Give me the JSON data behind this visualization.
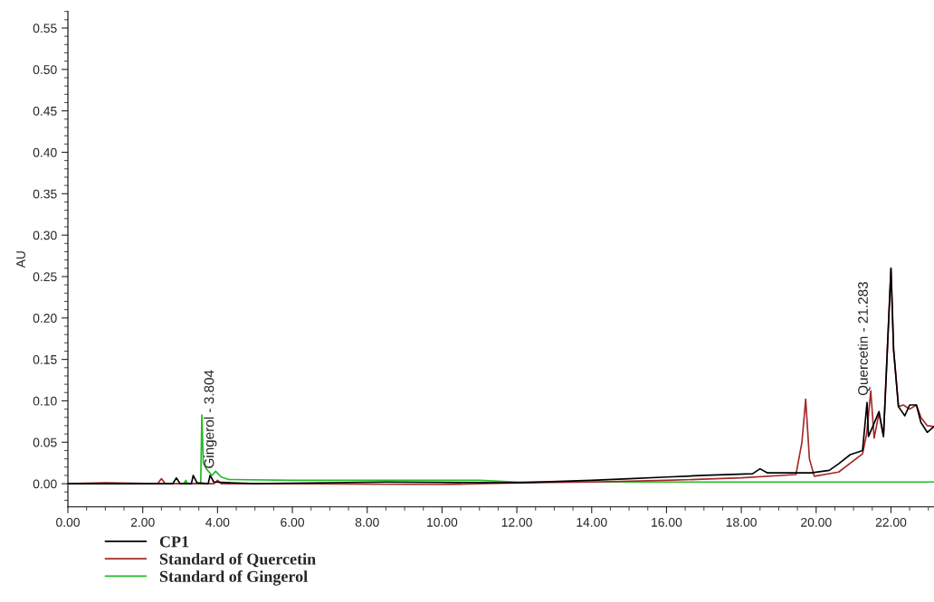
{
  "chart_data": {
    "type": "line",
    "ylabel": "AU",
    "xlim": [
      0,
      23.15
    ],
    "ylim": [
      -0.028,
      0.57
    ],
    "xticks": [
      {
        "value": 0,
        "label": "0.00"
      },
      {
        "value": 2,
        "label": "2.00"
      },
      {
        "value": 4,
        "label": "4.00"
      },
      {
        "value": 6,
        "label": "6.00"
      },
      {
        "value": 8,
        "label": "8.00"
      },
      {
        "value": 10,
        "label": "10.00"
      },
      {
        "value": 12,
        "label": "12.00"
      },
      {
        "value": 14,
        "label": "14.00"
      },
      {
        "value": 16,
        "label": "16.00"
      },
      {
        "value": 18,
        "label": "18.00"
      },
      {
        "value": 20,
        "label": "20.00"
      },
      {
        "value": 22,
        "label": "22.00"
      }
    ],
    "yticks": [
      {
        "value": 0,
        "label": "0.00"
      },
      {
        "value": 0.05,
        "label": "0.05"
      },
      {
        "value": 0.1,
        "label": "0.10"
      },
      {
        "value": 0.15,
        "label": "0.15"
      },
      {
        "value": 0.2,
        "label": "0.20"
      },
      {
        "value": 0.25,
        "label": "0.25"
      },
      {
        "value": 0.3,
        "label": "0.30"
      },
      {
        "value": 0.35,
        "label": "0.35"
      },
      {
        "value": 0.4,
        "label": "0.40"
      },
      {
        "value": 0.45,
        "label": "0.45"
      },
      {
        "value": 0.5,
        "label": "0.50"
      },
      {
        "value": 0.55,
        "label": "0.55"
      }
    ],
    "grid": false,
    "legend": "bottom left",
    "marker": "none",
    "line_style": "solid",
    "series": [
      {
        "name": "Standard of Gingerol",
        "color": "#22bb22",
        "x": [
          0,
          3.1,
          3.15,
          3.2,
          3.55,
          3.58,
          3.62,
          3.7,
          3.85,
          3.95,
          4.1,
          4.3,
          6,
          8,
          11,
          12,
          16,
          20,
          23.15
        ],
        "values": [
          0,
          0,
          0.004,
          0,
          0,
          0.083,
          0.025,
          0.018,
          0.01,
          0.015,
          0.008,
          0.005,
          0.004,
          0.004,
          0.004,
          0.002,
          0.002,
          0.002,
          0.002
        ]
      },
      {
        "name": "Standard of Quercetin",
        "color": "#a52a2a",
        "x": [
          0,
          1,
          2.4,
          2.5,
          2.6,
          3.9,
          4.0,
          4.1,
          6,
          10,
          12,
          14,
          16,
          18,
          19.46,
          19.62,
          19.72,
          19.82,
          19.95,
          20.6,
          21.24,
          21.35,
          21.46,
          21.55,
          21.68,
          21.8,
          22.0,
          22.07,
          22.2,
          22.33,
          22.5,
          22.68,
          22.8,
          22.97,
          23.15
        ],
        "values": [
          0,
          0.001,
          0,
          0.006,
          0,
          0,
          0.004,
          0,
          0,
          -0.001,
          0.001,
          0.002,
          0.004,
          0.007,
          0.011,
          0.05,
          0.102,
          0.03,
          0.009,
          0.014,
          0.036,
          0.06,
          0.112,
          0.055,
          0.085,
          0.057,
          0.26,
          0.162,
          0.093,
          0.095,
          0.09,
          0.095,
          0.08,
          0.07,
          0.069
        ]
      },
      {
        "name": "CP1",
        "color": "#000000",
        "x": [
          0,
          2.8,
          2.9,
          3.0,
          3.3,
          3.35,
          3.45,
          3.75,
          3.8,
          3.9,
          5,
          8.5,
          12,
          14,
          15,
          16,
          17,
          18.3,
          18.5,
          18.7,
          19.5,
          19.87,
          20.35,
          20.6,
          20.91,
          21.24,
          21.36,
          21.4,
          21.68,
          21.8,
          22.0,
          22.07,
          22.2,
          22.37,
          22.5,
          22.68,
          22.8,
          22.97,
          23.15
        ],
        "values": [
          0,
          0,
          0.007,
          0,
          0,
          0.01,
          0.001,
          0,
          0.01,
          0.002,
          0,
          0.002,
          0.001,
          0.004,
          0.006,
          0.008,
          0.01,
          0.012,
          0.018,
          0.013,
          0.013,
          0.013,
          0.016,
          0.024,
          0.035,
          0.04,
          0.098,
          0.057,
          0.087,
          0.057,
          0.26,
          0.162,
          0.093,
          0.082,
          0.095,
          0.095,
          0.074,
          0.062,
          0.069
        ]
      }
    ],
    "annotations": [
      {
        "text": "Gingerol - 3.804",
        "x": 3.804,
        "y": 0.012
      },
      {
        "text": "Quercetin - 21.283",
        "x": 21.283,
        "y": 0.1
      }
    ]
  }
}
